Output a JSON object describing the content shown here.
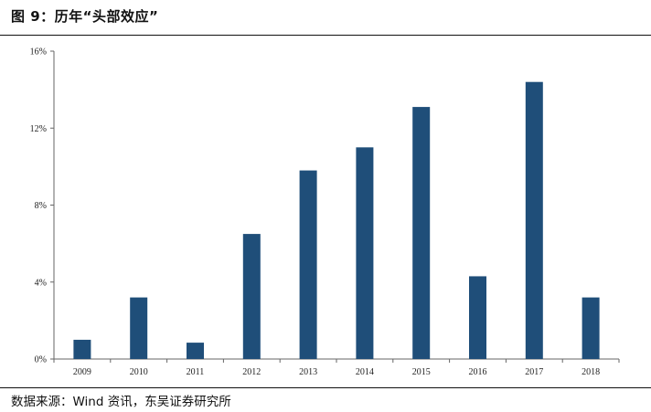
{
  "header": {
    "title": "图 9：历年“头部效应”"
  },
  "footer": {
    "source": "数据来源：Wind 资讯，东吴证券研究所"
  },
  "chart_data": {
    "type": "bar",
    "categories": [
      "2009",
      "2010",
      "2011",
      "2012",
      "2013",
      "2014",
      "2015",
      "2016",
      "2017",
      "2018"
    ],
    "values": [
      1.0,
      3.2,
      0.85,
      6.5,
      9.8,
      11.0,
      13.1,
      4.3,
      14.4,
      3.2
    ],
    "ylim": [
      0,
      16
    ],
    "yticks": [
      0,
      4,
      8,
      12,
      16
    ],
    "ytick_labels": [
      "0%",
      "4%",
      "8%",
      "12%",
      "16%"
    ],
    "xlabel": "",
    "ylabel": "",
    "grid": false,
    "bar_color": "#1f4e79"
  }
}
